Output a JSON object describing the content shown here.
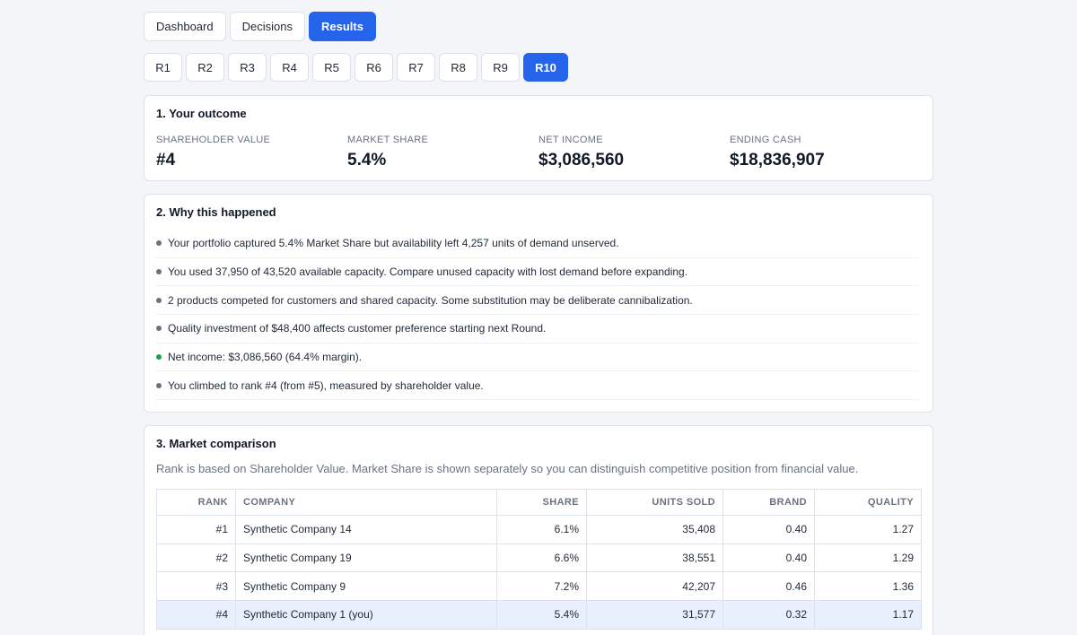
{
  "nav": {
    "tabs": [
      {
        "label": "Dashboard"
      },
      {
        "label": "Decisions"
      },
      {
        "label": "Results",
        "active": true
      }
    ]
  },
  "rounds": [
    "R1",
    "R2",
    "R3",
    "R4",
    "R5",
    "R6",
    "R7",
    "R8",
    "R9",
    "R10"
  ],
  "active_round": "R10",
  "outcome": {
    "title": "1. Your outcome",
    "metrics": [
      {
        "label": "SHAREHOLDER VALUE",
        "value": "#4"
      },
      {
        "label": "MARKET SHARE",
        "value": "5.4%"
      },
      {
        "label": "NET INCOME",
        "value": "$3,086,560"
      },
      {
        "label": "ENDING CASH",
        "value": "$18,836,907"
      }
    ]
  },
  "why": {
    "title": "2. Why this happened",
    "items": [
      {
        "text": "Your portfolio captured 5.4% Market Share but availability left 4,257 units of demand unserved.",
        "dot": "#6b7280"
      },
      {
        "text": "You used 37,950 of 43,520 available capacity. Compare unused capacity with lost demand before expanding.",
        "dot": "#6b7280"
      },
      {
        "text": "2 products competed for customers and shared capacity. Some substitution may be deliberate cannibalization.",
        "dot": "#6b7280"
      },
      {
        "text": "Quality investment of $48,400 affects customer preference starting next Round.",
        "dot": "#6b7280"
      },
      {
        "text": "Net income: $3,086,560 (64.4% margin).",
        "dot": "#16a34a"
      },
      {
        "text": "You climbed to rank #4 (from #5), measured by shareholder value.",
        "dot": "#6b7280"
      }
    ]
  },
  "market": {
    "title": "3. Market comparison",
    "subtitle": "Rank is based on Shareholder Value. Market Share is shown separately so you can distinguish competitive position from financial value.",
    "columns": [
      "RANK",
      "COMPANY",
      "SHARE",
      "UNITS SOLD",
      "BRAND",
      "QUALITY"
    ],
    "rows": [
      {
        "rank": "#1",
        "company": "Synthetic Company 14",
        "share": "6.1%",
        "units": "35,408",
        "brand": "0.40",
        "quality": "1.27"
      },
      {
        "rank": "#2",
        "company": "Synthetic Company 19",
        "share": "6.6%",
        "units": "38,551",
        "brand": "0.40",
        "quality": "1.29"
      },
      {
        "rank": "#3",
        "company": "Synthetic Company 9",
        "share": "7.2%",
        "units": "42,207",
        "brand": "0.46",
        "quality": "1.36"
      },
      {
        "rank": "#4",
        "company": "Synthetic Company 1 (you)",
        "share": "5.4%",
        "units": "31,577",
        "brand": "0.32",
        "quality": "1.17",
        "you": true
      }
    ]
  },
  "colors": {
    "accent": "#2563eb",
    "highlight_row": "#e8effd",
    "positive": "#16a34a",
    "neutral_dot": "#6b7280"
  }
}
